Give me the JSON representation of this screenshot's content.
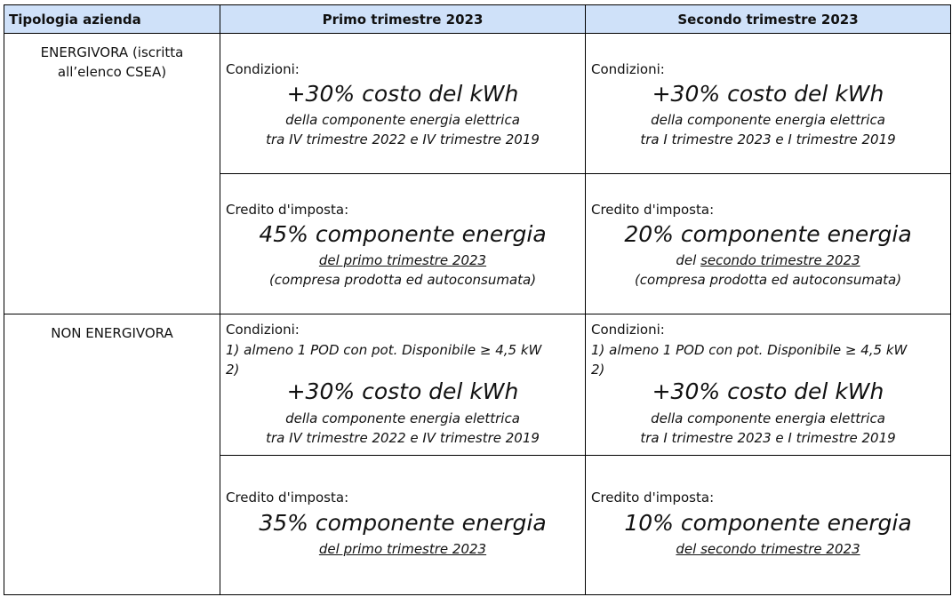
{
  "headers": {
    "col0": "Tipologia azienda",
    "col1": "Primo trimestre 2023",
    "col2": "Secondo trimestre 2023"
  },
  "rows": {
    "energivora": {
      "type": "ENERGIVORA (iscritta all’elenco CSEA)",
      "conditions": {
        "q1": {
          "label": "Condizioni:",
          "big": "+30% costo del kWh",
          "line1": "della componente energia elettrica",
          "line2": "tra IV trimestre 2022 e IV trimestre 2019"
        },
        "q2": {
          "label": "Condizioni:",
          "big": "+30% costo del kWh",
          "line1": "della componente energia elettrica",
          "line2": "tra I trimestre 2023 e I trimestre 2019"
        }
      },
      "credit": {
        "q1": {
          "label": "Credito d'imposta:",
          "big": "45% componente energia",
          "line1": "del primo trimestre 2023",
          "line2": "(compresa prodotta ed autoconsumata)"
        },
        "q2": {
          "label": "Credito d'imposta:",
          "big": "20% componente energia",
          "line1_prefix": "del ",
          "line1_underlined": "secondo trimestre 2023",
          "line2": "(compresa prodotta ed autoconsumata)"
        }
      }
    },
    "non_energivora": {
      "type": "NON ENERGIVORA",
      "conditions": {
        "q1": {
          "label": "Condizioni:",
          "cond1": "1) almeno 1 POD con pot. Disponibile ≥ 4,5 kW",
          "cond2": "2)",
          "big": "+30% costo del kWh",
          "line1": "della componente energia elettrica",
          "line2": "tra IV trimestre 2022 e IV trimestre 2019"
        },
        "q2": {
          "label": "Condizioni:",
          "cond1": "1) almeno 1 POD con pot. Disponibile ≥ 4,5 kW",
          "cond2": "2)",
          "big": "+30% costo del kWh",
          "line1": "della componente energia elettrica",
          "line2": "tra I trimestre 2023 e I trimestre 2019"
        }
      },
      "credit": {
        "q1": {
          "label": "Credito d'imposta:",
          "big": "35% componente energia",
          "line1": "del primo trimestre 2023"
        },
        "q2": {
          "label": "Credito d'imposta:",
          "big": "10% componente energia",
          "line1": "del secondo trimestre 2023"
        }
      }
    }
  },
  "colors": {
    "header_bg": "#cfe1f9",
    "border": "#000000"
  }
}
